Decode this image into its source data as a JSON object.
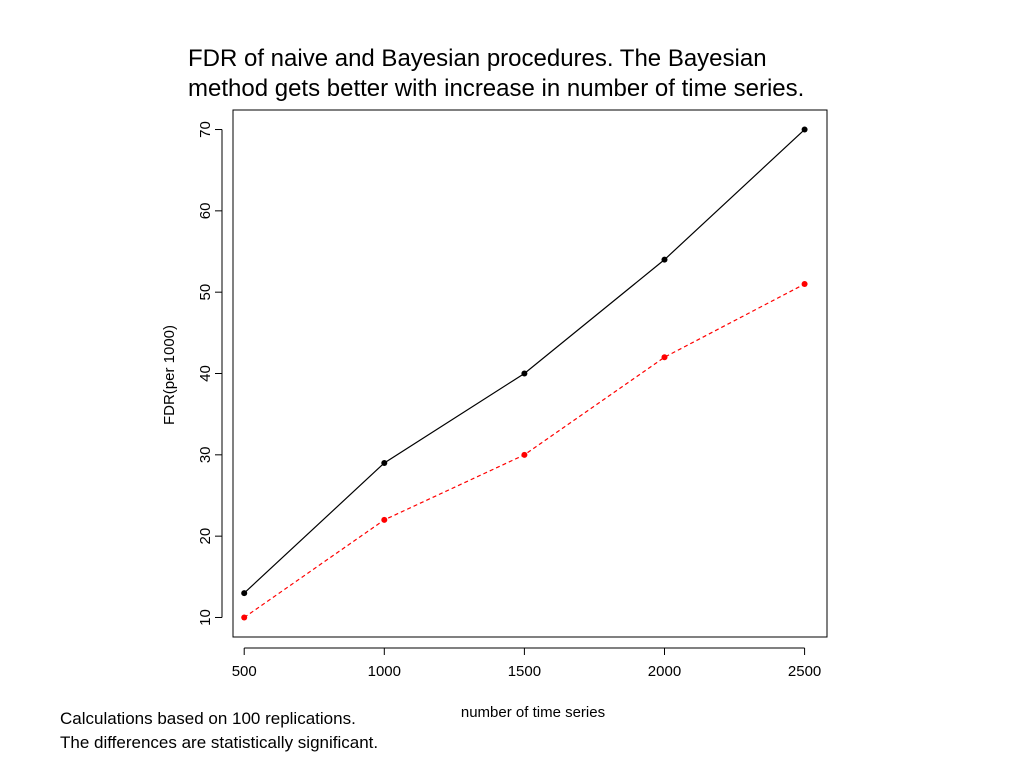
{
  "title": {
    "line1": "FDR of naive and Bayesian procedures. The Bayesian",
    "line2": "method gets better with increase in number of time series."
  },
  "footnote": {
    "line1": "Calculations based on 100 replications.",
    "line2": "The differences are statistically significant."
  },
  "chart_data": {
    "type": "line",
    "xlabel": "number of time series",
    "ylabel": "FDR(per 1000)",
    "x": [
      500,
      1000,
      1500,
      2000,
      2500
    ],
    "xlim": [
      460,
      2580
    ],
    "ylim": [
      7.6,
      72.4
    ],
    "xticks": [
      500,
      1000,
      1500,
      2000,
      2500
    ],
    "yticks": [
      10,
      20,
      30,
      40,
      50,
      60,
      70
    ],
    "grid": false,
    "legend": "none",
    "series": [
      {
        "values": [
          13,
          29,
          40,
          54,
          70
        ],
        "color": "#000000",
        "style": "solid"
      },
      {
        "values": [
          10,
          22,
          30,
          42,
          51
        ],
        "color": "#ff0000",
        "style": "dashed"
      }
    ]
  }
}
